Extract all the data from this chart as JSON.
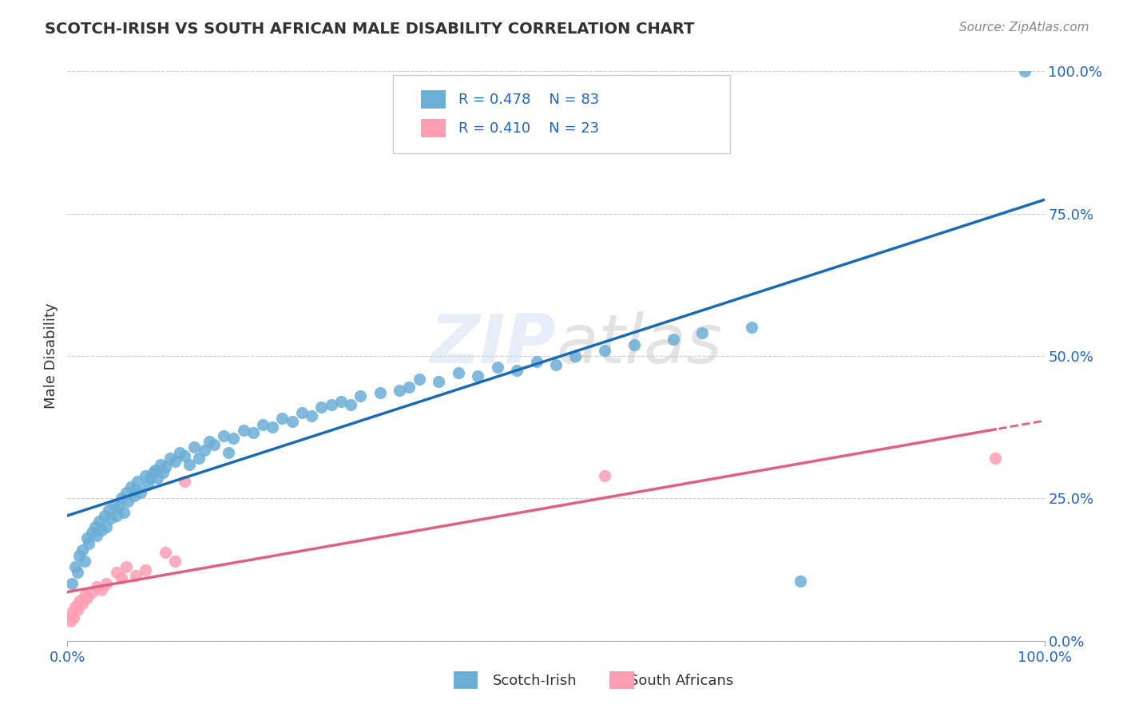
{
  "title": "SCOTCH-IRISH VS SOUTH AFRICAN MALE DISABILITY CORRELATION CHART",
  "source": "Source: ZipAtlas.com",
  "xlabel": "",
  "ylabel": "Male Disability",
  "xlim": [
    0,
    1.0
  ],
  "ylim": [
    0,
    1.0
  ],
  "xtick_labels": [
    "0.0%",
    "100.0%"
  ],
  "ytick_labels": [
    "0.0%",
    "25.0%",
    "50.0%",
    "75.0%",
    "100.0%"
  ],
  "ytick_vals": [
    0.0,
    0.25,
    0.5,
    0.75,
    1.0
  ],
  "grid_color": "#cccccc",
  "background_color": "#ffffff",
  "title_color": "#333333",
  "scotch_irish_color": "#6baed6",
  "south_african_color": "#fd9eb4",
  "scotch_irish_line_color": "#1a6ab5",
  "south_african_line_color": "#e06080",
  "legend_R1": "R = 0.478",
  "legend_N1": "N = 83",
  "legend_R2": "R = 0.410",
  "legend_N2": "N = 23",
  "scotch_irish_x": [
    0.005,
    0.008,
    0.01,
    0.012,
    0.015,
    0.018,
    0.02,
    0.022,
    0.025,
    0.028,
    0.03,
    0.032,
    0.035,
    0.038,
    0.04,
    0.042,
    0.045,
    0.048,
    0.05,
    0.052,
    0.055,
    0.058,
    0.06,
    0.062,
    0.065,
    0.068,
    0.07,
    0.072,
    0.075,
    0.08,
    0.082,
    0.085,
    0.088,
    0.09,
    0.092,
    0.095,
    0.098,
    0.1,
    0.105,
    0.11,
    0.115,
    0.12,
    0.125,
    0.13,
    0.135,
    0.14,
    0.145,
    0.15,
    0.16,
    0.165,
    0.17,
    0.18,
    0.19,
    0.2,
    0.21,
    0.22,
    0.23,
    0.24,
    0.25,
    0.26,
    0.27,
    0.28,
    0.29,
    0.3,
    0.32,
    0.34,
    0.35,
    0.36,
    0.38,
    0.4,
    0.42,
    0.44,
    0.46,
    0.48,
    0.5,
    0.52,
    0.55,
    0.58,
    0.62,
    0.65,
    0.7,
    0.75,
    0.98
  ],
  "scotch_irish_y": [
    0.1,
    0.13,
    0.12,
    0.15,
    0.16,
    0.14,
    0.18,
    0.17,
    0.19,
    0.2,
    0.185,
    0.21,
    0.195,
    0.22,
    0.2,
    0.23,
    0.215,
    0.24,
    0.22,
    0.235,
    0.25,
    0.225,
    0.26,
    0.245,
    0.27,
    0.255,
    0.265,
    0.28,
    0.26,
    0.29,
    0.275,
    0.285,
    0.295,
    0.3,
    0.285,
    0.31,
    0.295,
    0.305,
    0.32,
    0.315,
    0.33,
    0.325,
    0.31,
    0.34,
    0.32,
    0.335,
    0.35,
    0.345,
    0.36,
    0.33,
    0.355,
    0.37,
    0.365,
    0.38,
    0.375,
    0.39,
    0.385,
    0.4,
    0.395,
    0.41,
    0.415,
    0.42,
    0.415,
    0.43,
    0.435,
    0.44,
    0.445,
    0.46,
    0.455,
    0.47,
    0.465,
    0.48,
    0.475,
    0.49,
    0.485,
    0.5,
    0.51,
    0.52,
    0.53,
    0.54,
    0.55,
    0.105,
    1.0
  ],
  "south_african_x": [
    0.003,
    0.005,
    0.006,
    0.008,
    0.01,
    0.012,
    0.015,
    0.018,
    0.02,
    0.025,
    0.03,
    0.035,
    0.04,
    0.05,
    0.055,
    0.06,
    0.07,
    0.08,
    0.1,
    0.11,
    0.12,
    0.55,
    0.95
  ],
  "south_african_y": [
    0.035,
    0.05,
    0.04,
    0.06,
    0.055,
    0.07,
    0.065,
    0.08,
    0.075,
    0.085,
    0.095,
    0.09,
    0.1,
    0.12,
    0.11,
    0.13,
    0.115,
    0.125,
    0.155,
    0.14,
    0.28,
    0.29,
    0.32
  ]
}
